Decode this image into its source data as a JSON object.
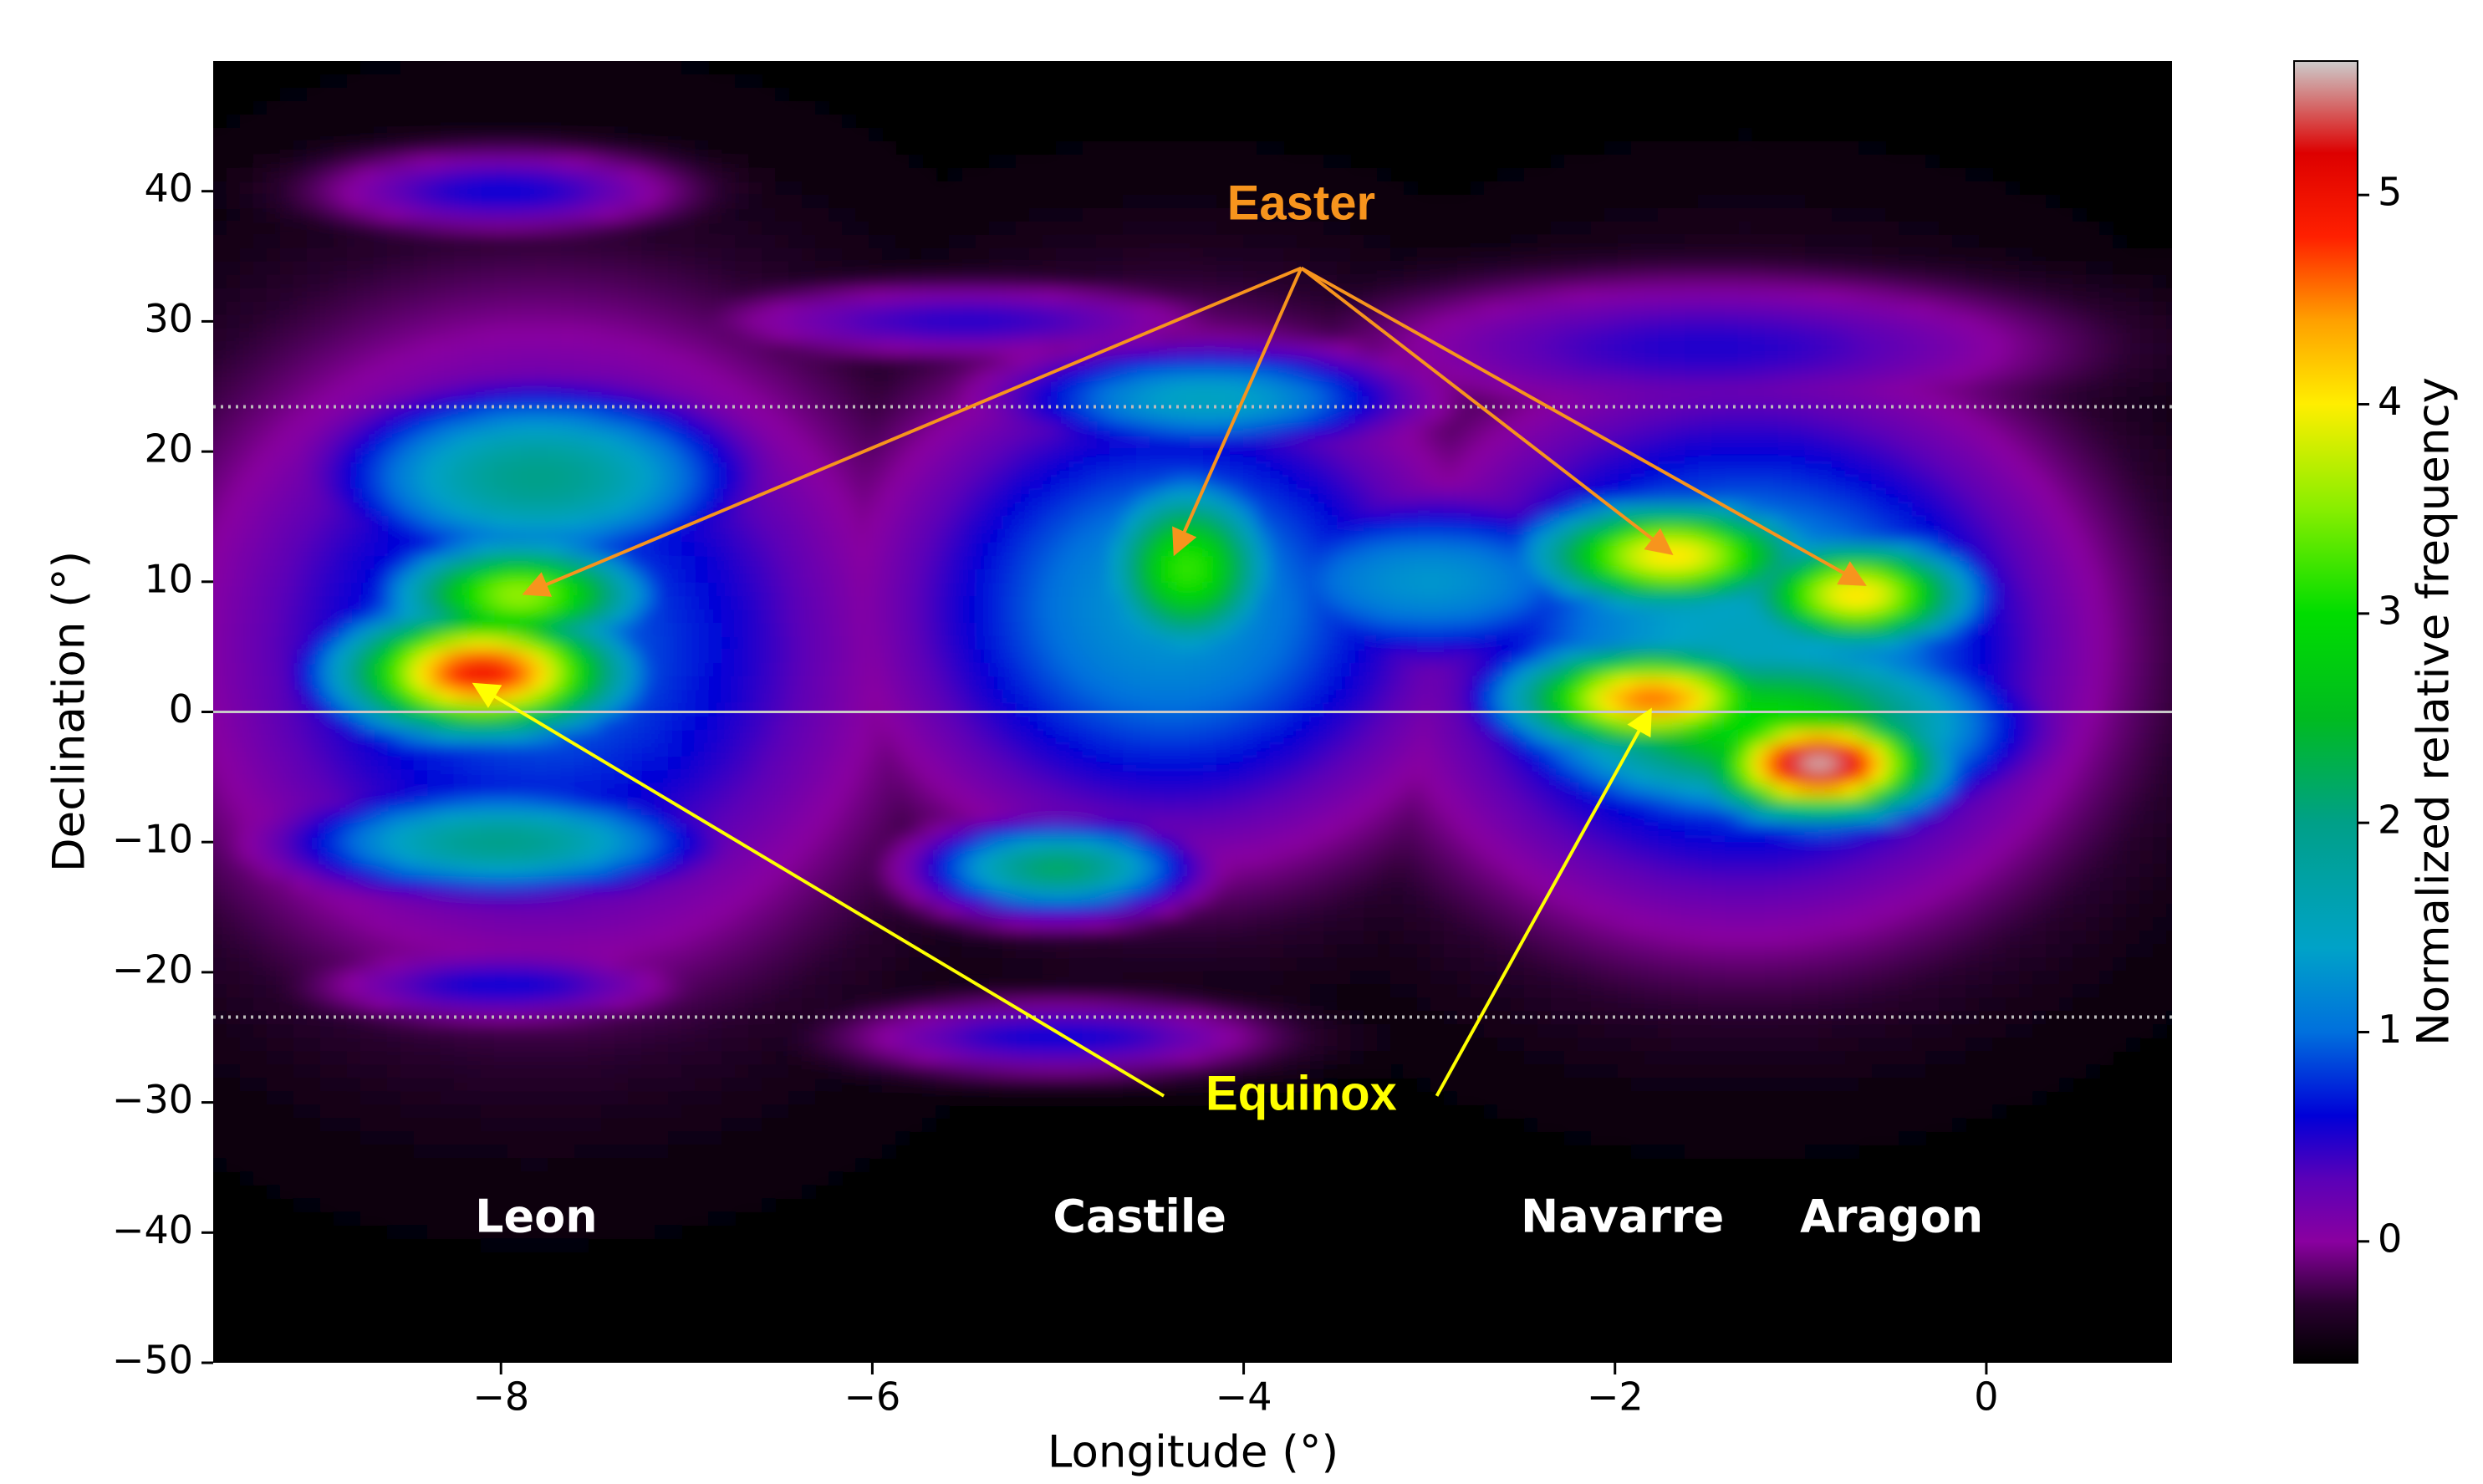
{
  "chart_data": {
    "type": "density",
    "xlabel": "Longitude (°)",
    "ylabel": "Declination (°)",
    "colorbar_label": "Normalized relative frequency",
    "xlim": [
      -9.55,
      1.0
    ],
    "xticks": [
      {
        "value": -8,
        "label": "−8"
      },
      {
        "value": -6,
        "label": "−6"
      },
      {
        "value": -4,
        "label": "−4"
      },
      {
        "value": -2,
        "label": "−2"
      },
      0
    ],
    "ylim": [
      -50,
      50
    ],
    "yticks": [
      {
        "value": -50,
        "label": "−50"
      },
      {
        "value": -40,
        "label": "−40"
      },
      {
        "value": -30,
        "label": "−30"
      },
      {
        "value": -20,
        "label": "−20"
      },
      {
        "value": -10,
        "label": "−10"
      },
      0,
      10,
      20,
      30,
      40
    ],
    "clim": [
      -0.58,
      5.64
    ],
    "cticks": [
      0,
      1,
      2,
      3,
      4,
      5
    ],
    "colormap": [
      [
        -0.58,
        "#000000"
      ],
      [
        -0.3,
        "#2a0030"
      ],
      [
        0,
        "#8a00a0"
      ],
      [
        0.3,
        "#5a00b8"
      ],
      [
        0.6,
        "#0000d8"
      ],
      [
        1.0,
        "#0070dd"
      ],
      [
        1.4,
        "#00a2c8"
      ],
      [
        2.0,
        "#00a088"
      ],
      [
        2.5,
        "#00bb20"
      ],
      [
        3.0,
        "#00dd00"
      ],
      [
        3.5,
        "#88ee00"
      ],
      [
        4.0,
        "#ffee00"
      ],
      [
        4.4,
        "#ffa000"
      ],
      [
        4.8,
        "#ff2000"
      ],
      [
        5.2,
        "#dd0000"
      ],
      [
        5.64,
        "#cccccc"
      ]
    ],
    "hlines": [
      {
        "value": 23.44,
        "style": "dotted"
      },
      {
        "value": 0,
        "style": "solid"
      },
      {
        "value": -23.44,
        "style": "dotted"
      }
    ],
    "blobs": [
      {
        "x": -8.1,
        "y": 3,
        "sx": 0.55,
        "sy": 3.5,
        "peak": 5.0
      },
      {
        "x": -7.9,
        "y": 9,
        "sx": 0.5,
        "sy": 3,
        "peak": 3.6
      },
      {
        "x": -7.8,
        "y": 18,
        "sx": 0.8,
        "sy": 5,
        "peak": 2.0
      },
      {
        "x": -8.0,
        "y": -10,
        "sx": 0.8,
        "sy": 3,
        "peak": 2.0
      },
      {
        "x": -8.0,
        "y": 40,
        "sx": 0.7,
        "sy": 2.2,
        "peak": 0.6
      },
      {
        "x": -8.0,
        "y": -21,
        "sx": 0.7,
        "sy": 2,
        "peak": 0.6
      },
      {
        "x": -7.8,
        "y": 5,
        "sx": 1.3,
        "sy": 17,
        "peak": 1.0
      },
      {
        "x": -4.3,
        "y": 11,
        "sx": 0.35,
        "sy": 5,
        "peak": 3.2
      },
      {
        "x": -4.2,
        "y": 24,
        "sx": 0.8,
        "sy": 3,
        "peak": 1.5
      },
      {
        "x": -5.0,
        "y": -12,
        "sx": 0.5,
        "sy": 2.5,
        "peak": 2.2
      },
      {
        "x": -5.0,
        "y": -25,
        "sx": 0.8,
        "sy": 2,
        "peak": 0.6
      },
      {
        "x": -5.5,
        "y": 30,
        "sx": 1.0,
        "sy": 2,
        "peak": 0.5
      },
      {
        "x": -4.4,
        "y": 8,
        "sx": 1.1,
        "sy": 13,
        "peak": 1.3
      },
      {
        "x": -3.0,
        "y": 10,
        "sx": 0.9,
        "sy": 5,
        "peak": 1.3
      },
      {
        "x": -1.7,
        "y": 12,
        "sx": 0.55,
        "sy": 3,
        "peak": 4.1
      },
      {
        "x": -0.7,
        "y": 9,
        "sx": 0.45,
        "sy": 3,
        "peak": 4.1
      },
      {
        "x": -1.8,
        "y": 1,
        "sx": 0.55,
        "sy": 3,
        "peak": 4.6
      },
      {
        "x": -0.9,
        "y": -4,
        "sx": 0.45,
        "sy": 3,
        "peak": 5.6
      },
      {
        "x": -1.2,
        "y": -1,
        "sx": 0.9,
        "sy": 5,
        "peak": 3.0
      },
      {
        "x": -1.3,
        "y": 5,
        "sx": 1.2,
        "sy": 14,
        "peak": 1.5
      },
      {
        "x": -1.5,
        "y": 28,
        "sx": 1.4,
        "sy": 4,
        "peak": 0.5
      }
    ],
    "regions": [
      {
        "label": "Leon",
        "x": -7.81,
        "y": -39
      },
      {
        "label": "Castile",
        "x": -4.56,
        "y": -39
      },
      {
        "label": "Navarre",
        "x": -1.96,
        "y": -39
      },
      {
        "label": "Aragon",
        "x": -0.51,
        "y": -39
      }
    ],
    "annotations": [
      {
        "text": "Easter",
        "color": "#f7941d",
        "x": -3.69,
        "y": 38.8,
        "arrows": [
          {
            "from": [
              -3.69,
              34.1
            ],
            "to": [
              -7.87,
              9.1
            ]
          },
          {
            "from": [
              -3.69,
              34.1
            ],
            "to": [
              -4.37,
              12.2
            ]
          },
          {
            "from": [
              -3.69,
              34.1
            ],
            "to": [
              -1.7,
              12.2
            ]
          },
          {
            "from": [
              -3.69,
              34.1
            ],
            "to": [
              -0.66,
              9.8
            ]
          }
        ]
      },
      {
        "text": "Equinox",
        "color": "#ffff00",
        "x": -3.69,
        "y": -29.6,
        "arrows": [
          {
            "from": [
              -4.43,
              -29.5
            ],
            "to": [
              -8.14,
              2.1
            ]
          },
          {
            "from": [
              -2.96,
              -29.5
            ],
            "to": [
              -1.81,
              0.1
            ]
          }
        ]
      }
    ]
  }
}
